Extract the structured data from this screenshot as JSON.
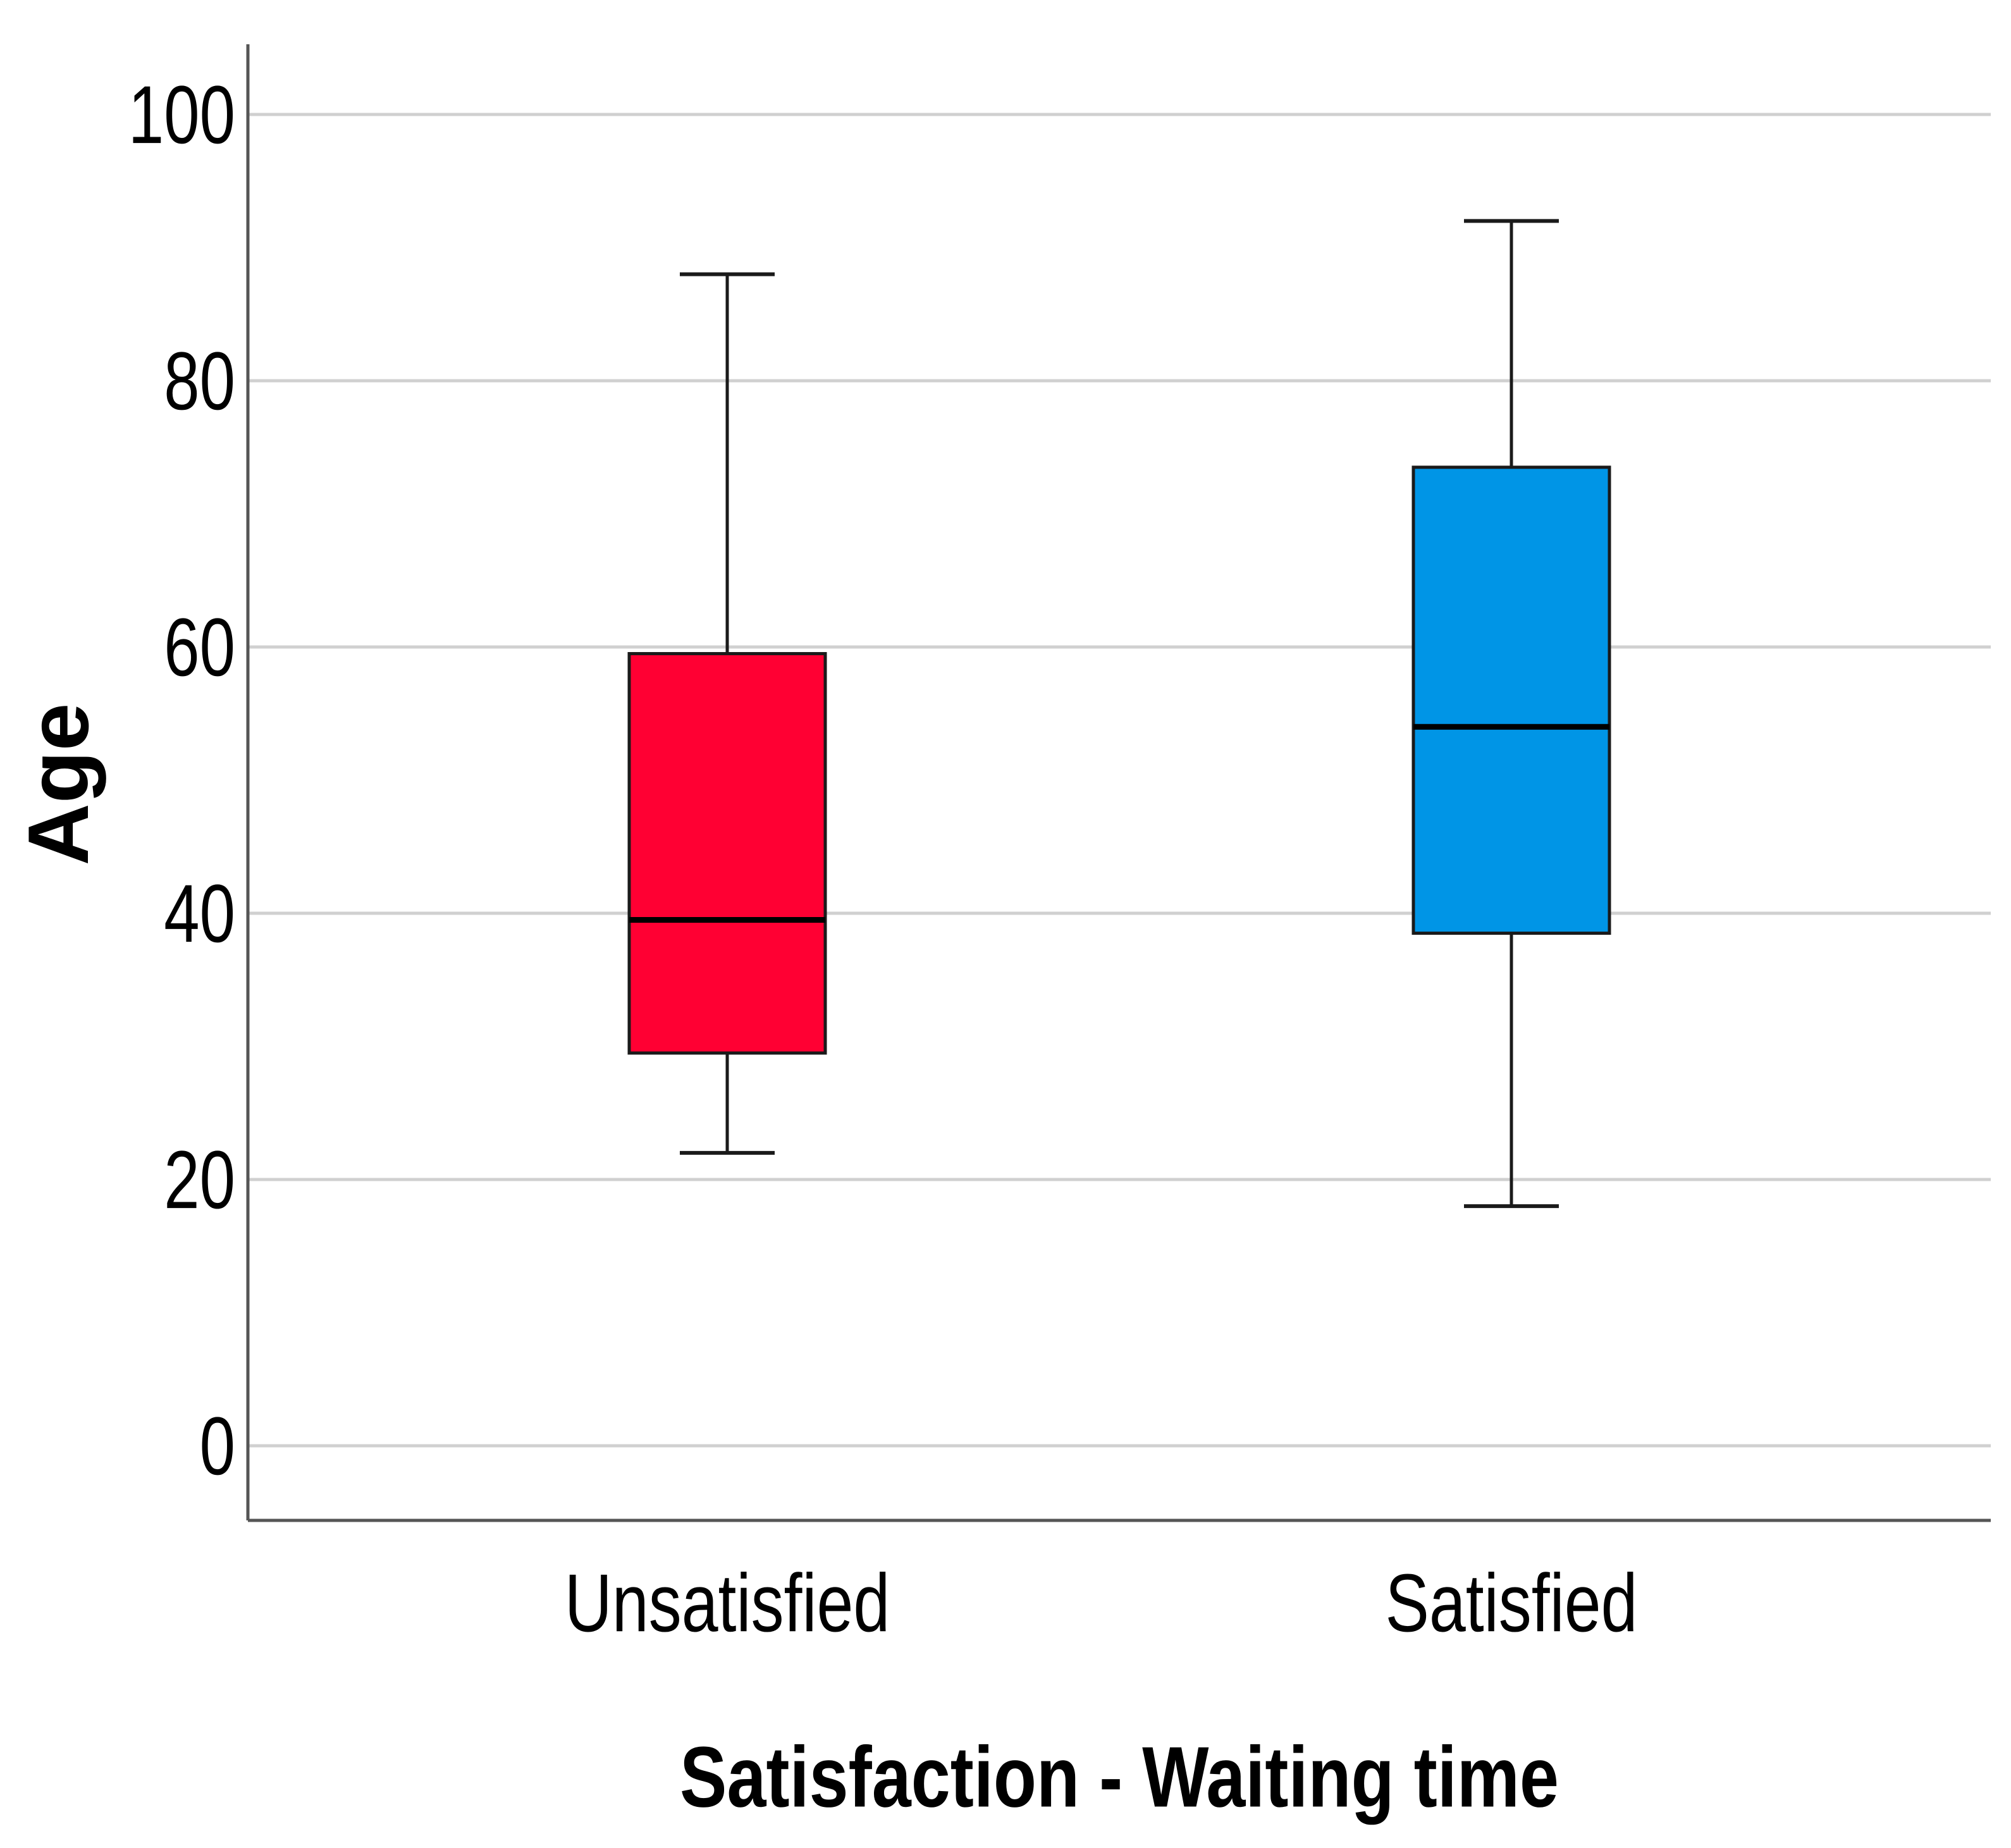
{
  "chart_data": {
    "type": "boxplot",
    "title": "",
    "xlabel": "Satisfaction - Waiting time",
    "ylabel": "Age",
    "ylim": [
      -5,
      105
    ],
    "yticks": [
      0,
      20,
      40,
      60,
      80,
      100
    ],
    "ytick_labels": [
      "0",
      "20",
      "40",
      "60",
      "80",
      "100"
    ],
    "grid": true,
    "categories": [
      "Unsatisfied",
      "Satisfied"
    ],
    "boxes": [
      {
        "category": "Unsatisfied",
        "whisker_low": 22,
        "q1": 29.5,
        "median": 39.5,
        "q3": 59.5,
        "whisker_high": 88,
        "color": "#ff0033"
      },
      {
        "category": "Satisfied",
        "whisker_low": 18,
        "q1": 38.5,
        "median": 54,
        "q3": 73.5,
        "whisker_high": 92,
        "color": "#0095e6"
      }
    ]
  },
  "colors": {
    "grid": "#d0d0d0",
    "axis": "#555555",
    "outline": "#1a1a1a"
  }
}
